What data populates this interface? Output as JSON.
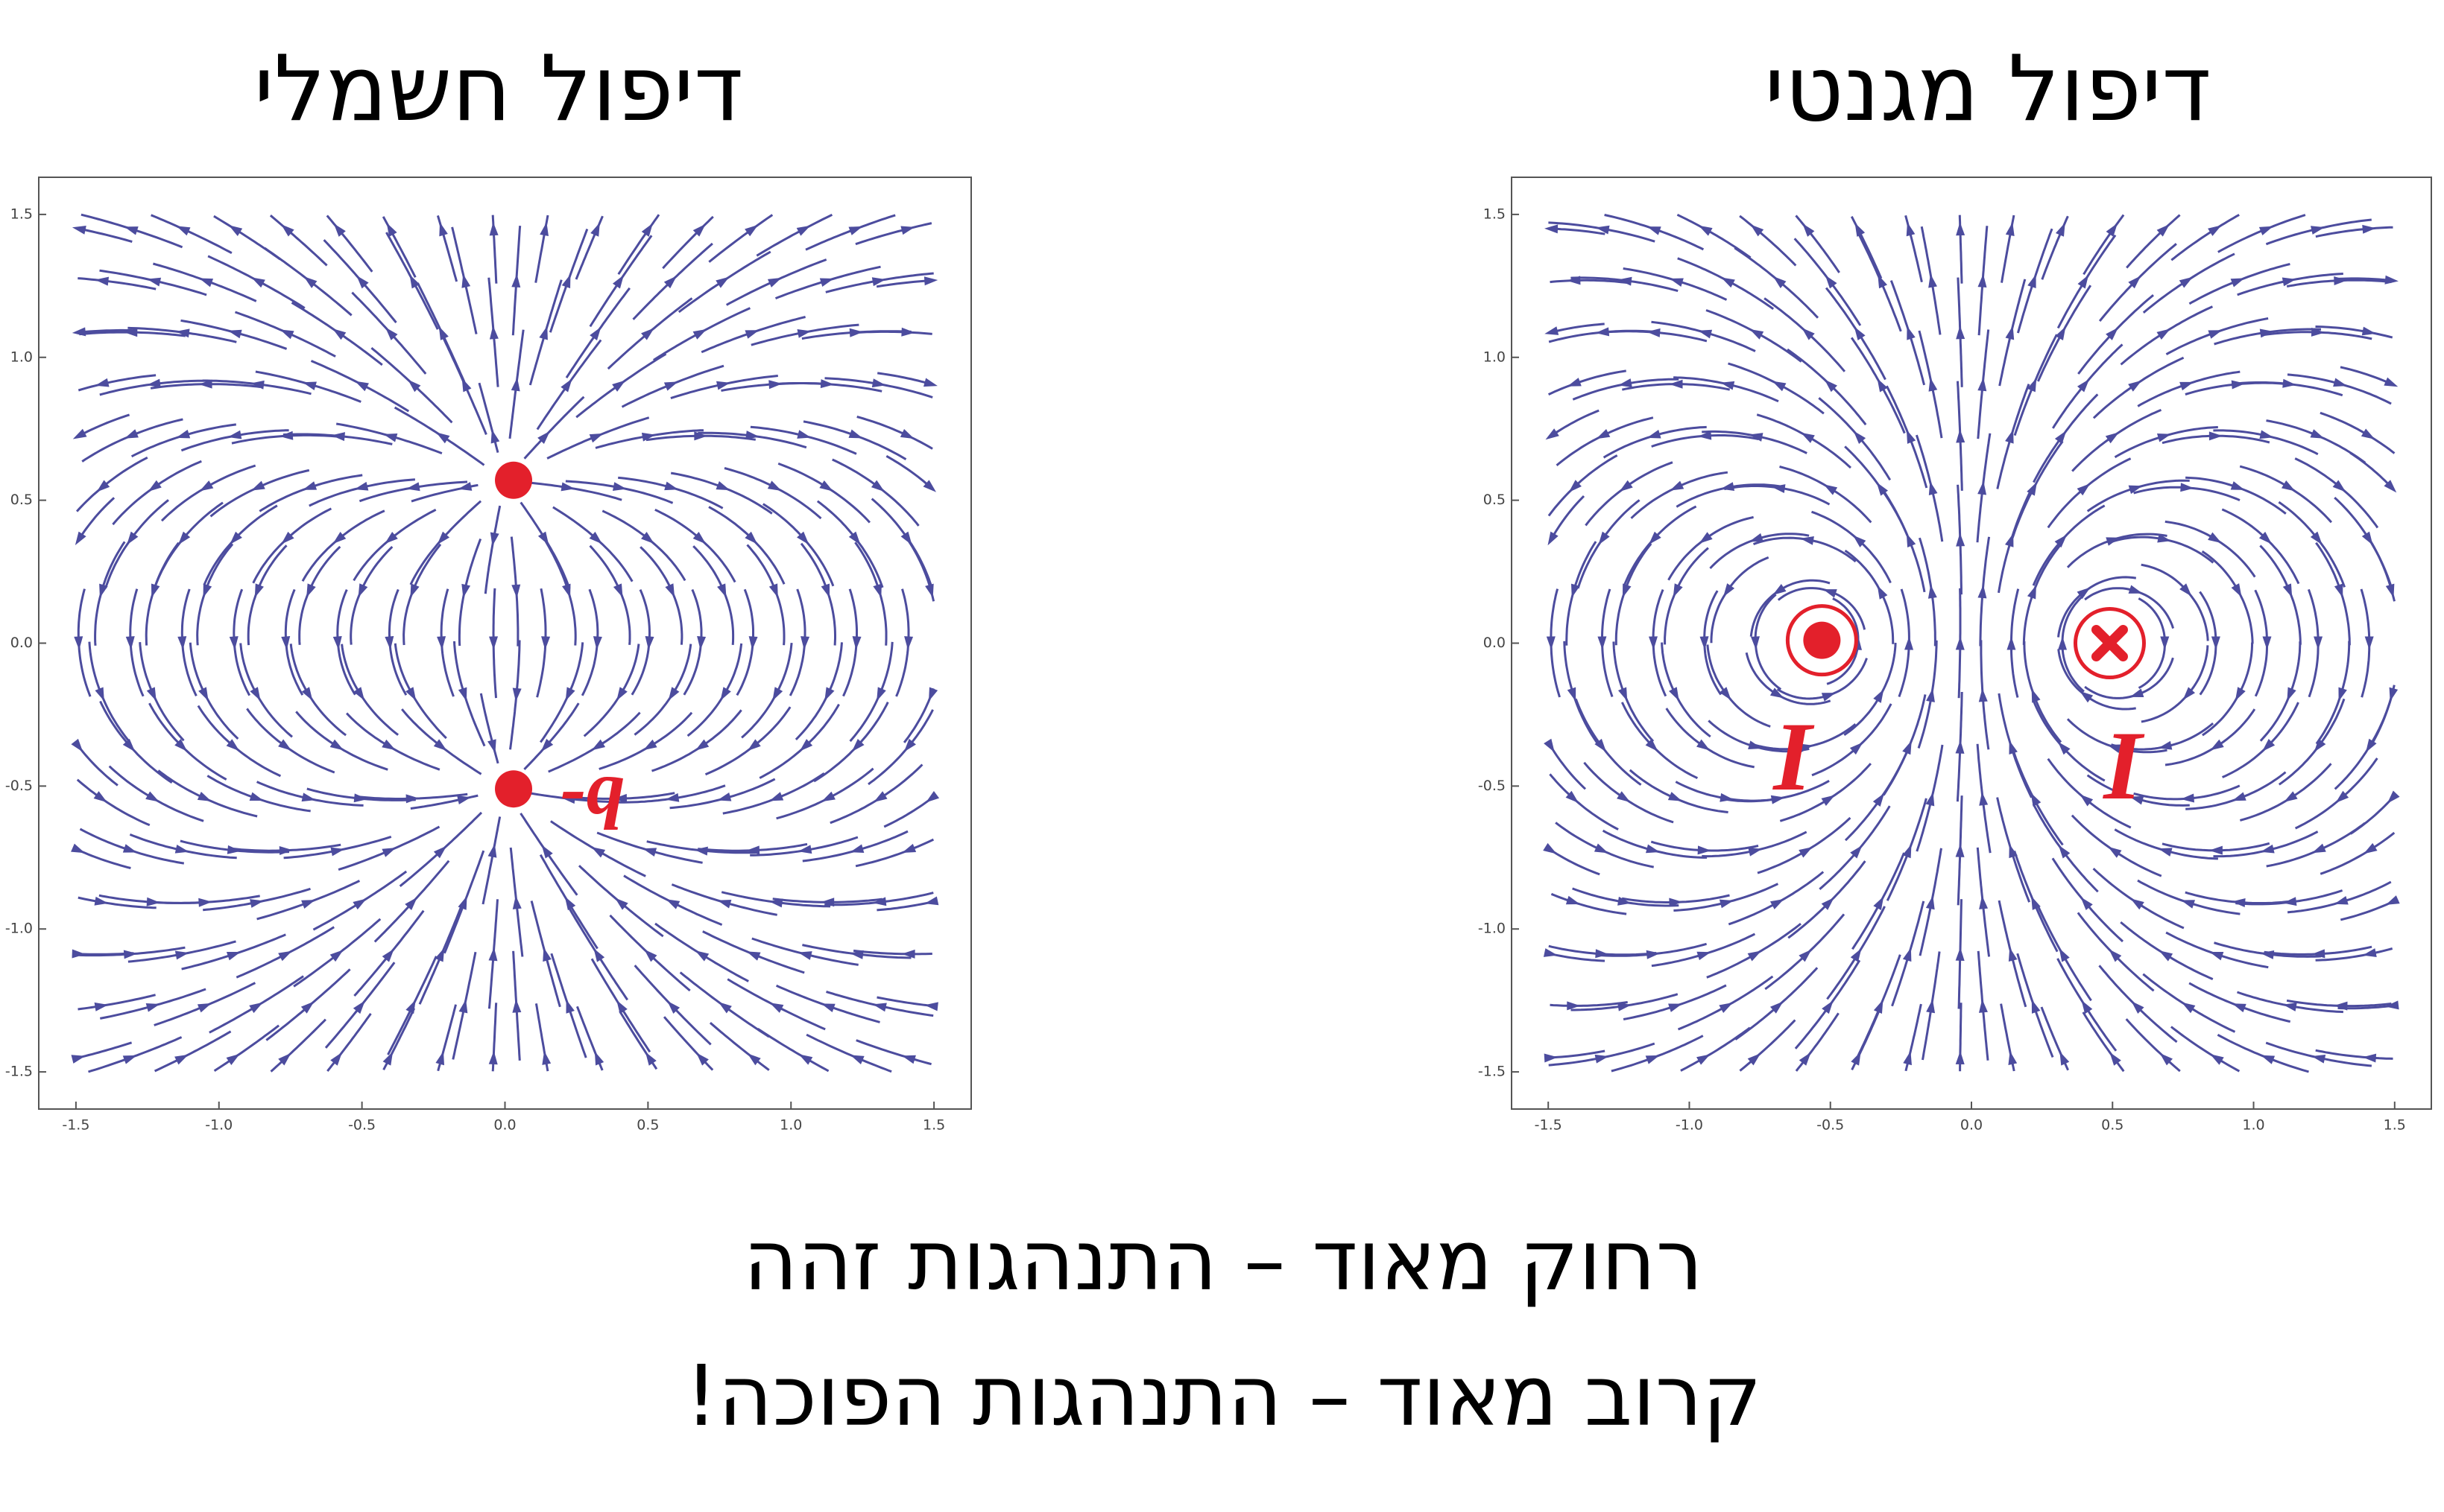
{
  "panels": [
    {
      "title": "דיפול חשמלי",
      "xlim": [
        -1.63,
        1.63
      ],
      "ylim": [
        -1.63,
        1.63
      ],
      "xticks": [
        -1.5,
        {
          "value": -1,
          "label": "-1.0"
        },
        -0.5,
        {
          "value": 0,
          "label": "0.0"
        },
        0.5,
        {
          "value": 1,
          "label": "1.0"
        },
        1.5
      ],
      "yticks": [
        -1.5,
        {
          "value": -1,
          "label": "-1.0"
        },
        -0.5,
        {
          "value": 0,
          "label": "0.0"
        },
        0.5,
        {
          "value": 1,
          "label": "1.0"
        },
        1.5
      ],
      "labels": [
        "-q"
      ]
    },
    {
      "title": "דיפול מגנטי",
      "xlim": [
        -1.63,
        1.63
      ],
      "ylim": [
        -1.63,
        1.63
      ],
      "xticks": [
        -1.5,
        {
          "value": -1,
          "label": "-1.0"
        },
        -0.5,
        {
          "value": 0,
          "label": "0.0"
        },
        0.5,
        {
          "value": 1,
          "label": "1.0"
        },
        1.5
      ],
      "yticks": [
        -1.5,
        {
          "value": -1,
          "label": "-1.0"
        },
        -0.5,
        {
          "value": 0,
          "label": "0.0"
        },
        0.5,
        {
          "value": 1,
          "label": "1.0"
        },
        1.5
      ],
      "labels": [
        "I",
        "I"
      ]
    }
  ],
  "footer": [
    "רחוק מאוד – התנהגות זהה",
    "קרוב מאוד – התנהגות הפוכה!"
  ]
}
